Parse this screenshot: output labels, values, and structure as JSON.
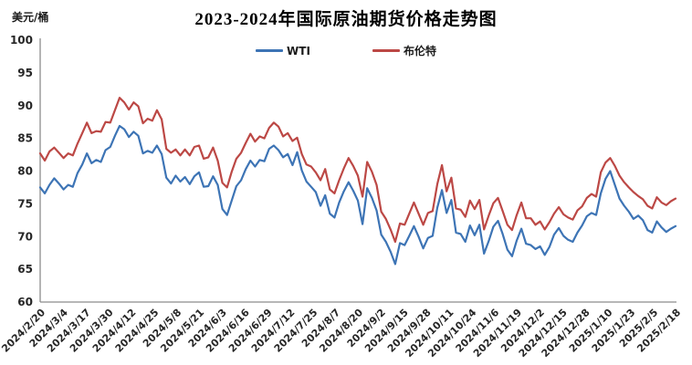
{
  "header": {
    "title": "2023-2024年国际原油期货价格走势图",
    "unit_label": "美元/桶"
  },
  "colors": {
    "wti_blue": "#3D74B5",
    "brent_red": "#BC4845",
    "axis_gray": "#8C8C8C",
    "tick_text": "#262626"
  },
  "chart_data": {
    "type": "line",
    "title": "2023-2024年国际原油期货价格走势图",
    "ylabel": "美元/桶",
    "xlabel": "",
    "ylim": [
      60,
      100
    ],
    "yticks": [
      100,
      95,
      90,
      85,
      80,
      75,
      70,
      65,
      60
    ],
    "grid": false,
    "legend_position": "top-center",
    "x_labels": [
      "2024/2/20",
      "2024/3/4",
      "2024/3/17",
      "2024/3/30",
      "2024/4/12",
      "2024/4/25",
      "2024/5/8",
      "2024/5/21",
      "2024/6/3",
      "2024/6/16",
      "2024/6/29",
      "2024/7/12",
      "2024/7/25",
      "2024/8/7",
      "2024/8/20",
      "2024/9/2",
      "2024/9/15",
      "2024/9/28",
      "2024/10/11",
      "2024/10/24",
      "2024/11/6",
      "2024/11/19",
      "2024/12/2",
      "2024/12/15",
      "2024/12/28",
      "2025/1/10",
      "2025/1/23",
      "2025/2/5",
      "2025/2/18"
    ],
    "series": [
      {
        "name": "WTI",
        "color": "#3D74B5",
        "values": [
          77.5,
          76.6,
          77.9,
          78.9,
          78.1,
          77.2,
          77.9,
          77.6,
          79.7,
          81.0,
          82.7,
          81.2,
          81.7,
          81.4,
          83.2,
          83.7,
          85.4,
          86.9,
          86.4,
          85.2,
          86.0,
          85.4,
          82.7,
          83.1,
          82.8,
          83.9,
          82.6,
          79.0,
          78.1,
          79.3,
          78.4,
          79.1,
          78.0,
          79.2,
          79.8,
          77.6,
          77.7,
          79.2,
          77.9,
          74.2,
          73.3,
          75.5,
          77.7,
          78.6,
          80.3,
          81.6,
          80.7,
          81.7,
          81.5,
          83.4,
          83.9,
          83.2,
          82.1,
          82.6,
          80.9,
          82.9,
          80.1,
          78.4,
          77.6,
          76.8,
          74.7,
          76.3,
          73.5,
          72.9,
          75.2,
          76.9,
          78.3,
          77.0,
          75.5,
          71.9,
          77.4,
          75.9,
          74.0,
          70.3,
          69.2,
          67.7,
          65.8,
          69.0,
          68.7,
          70.1,
          71.6,
          70.0,
          68.2,
          69.8,
          70.1,
          74.4,
          77.1,
          73.6,
          75.6,
          70.6,
          70.4,
          69.2,
          71.7,
          70.2,
          71.8,
          67.4,
          69.3,
          71.5,
          72.4,
          70.4,
          68.0,
          67.0,
          69.4,
          71.2,
          68.9,
          68.7,
          68.1,
          68.5,
          67.2,
          68.4,
          70.3,
          71.3,
          70.1,
          69.5,
          69.2,
          70.6,
          71.7,
          73.1,
          73.6,
          73.3,
          76.6,
          78.8,
          80.0,
          77.9,
          75.8,
          74.7,
          73.8,
          72.7,
          73.2,
          72.5,
          71.0,
          70.6,
          72.3,
          71.4,
          70.7,
          71.2,
          71.6
        ]
      },
      {
        "name": "布伦特",
        "color": "#BC4845",
        "values": [
          82.7,
          81.6,
          83.0,
          83.6,
          82.8,
          82.0,
          82.7,
          82.4,
          84.2,
          85.8,
          87.4,
          85.8,
          86.1,
          86.0,
          87.5,
          87.4,
          89.3,
          91.2,
          90.5,
          89.4,
          90.5,
          89.9,
          87.3,
          88.0,
          87.7,
          89.3,
          87.9,
          83.4,
          82.8,
          83.3,
          82.4,
          83.3,
          82.4,
          83.7,
          83.9,
          81.9,
          82.1,
          83.6,
          81.6,
          78.2,
          77.5,
          79.9,
          81.9,
          82.8,
          84.3,
          85.7,
          84.5,
          85.3,
          85.0,
          86.6,
          87.4,
          86.8,
          85.3,
          85.8,
          84.6,
          85.1,
          82.6,
          81.0,
          80.7,
          79.8,
          78.6,
          80.3,
          77.2,
          76.6,
          78.6,
          80.4,
          82.0,
          80.8,
          79.3,
          76.1,
          81.4,
          79.9,
          77.9,
          73.8,
          72.7,
          71.1,
          69.2,
          72.0,
          71.8,
          73.5,
          75.2,
          73.5,
          71.8,
          73.6,
          73.9,
          78.0,
          80.9,
          76.9,
          79.0,
          74.3,
          74.1,
          73.0,
          75.5,
          74.2,
          75.6,
          71.1,
          73.2,
          75.1,
          75.9,
          73.9,
          71.8,
          71.0,
          73.3,
          75.2,
          72.8,
          72.8,
          71.8,
          72.3,
          71.1,
          72.2,
          73.5,
          74.5,
          73.4,
          72.9,
          72.6,
          74.0,
          74.6,
          75.9,
          76.5,
          76.1,
          79.8,
          81.3,
          82.0,
          80.8,
          79.3,
          78.3,
          77.5,
          76.8,
          76.2,
          75.7,
          74.7,
          74.3,
          76.0,
          75.2,
          74.8,
          75.4,
          75.8
        ]
      }
    ]
  }
}
